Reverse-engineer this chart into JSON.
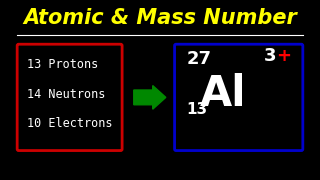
{
  "title": "Atomic & Mass Number",
  "title_color": "#FFFF00",
  "bg_color": "#000000",
  "line_color": "#FFFFFF",
  "left_box_color": "#CC0000",
  "right_box_color": "#0000CC",
  "arrow_color": "#008800",
  "left_items": [
    "13 Protons",
    "14 Neutrons",
    "10 Electrons"
  ],
  "left_text_color": "#FFFFFF",
  "element_symbol": "Al",
  "mass_number": "27",
  "atomic_number": "13",
  "charge_number": "3",
  "charge_sign": "+",
  "element_color": "#FFFFFF",
  "charge_number_color": "#FFFFFF",
  "charge_sign_color": "#FF0000"
}
